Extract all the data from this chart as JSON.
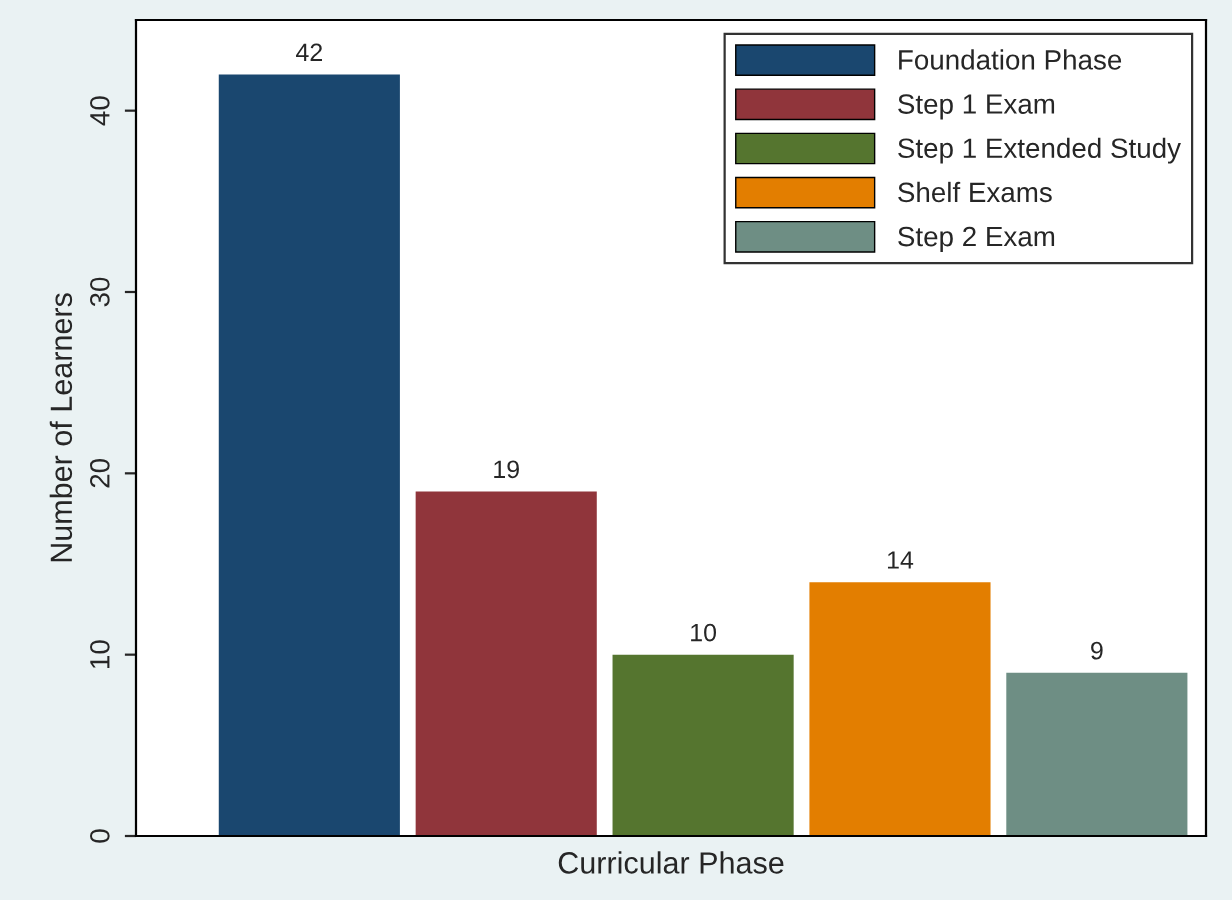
{
  "chart_data": {
    "type": "bar",
    "xlabel": "Curricular Phase",
    "ylabel": "Number of Learners",
    "categories": [
      null
    ],
    "series": [
      {
        "name": "Foundation Phase",
        "color": "#1a476f",
        "values": [
          42
        ]
      },
      {
        "name": "Step 1 Exam",
        "color": "#90353b",
        "values": [
          19
        ]
      },
      {
        "name": "Step 1 Extended Study",
        "color": "#55752f",
        "values": [
          10
        ]
      },
      {
        "name": "Shelf Exams",
        "color": "#e37e00",
        "values": [
          14
        ]
      },
      {
        "name": "Step 2 Exam",
        "color": "#6e8e84",
        "values": [
          9
        ]
      }
    ],
    "ylim": [
      0,
      45
    ],
    "yticks": [
      0,
      10,
      20,
      30,
      40
    ],
    "grid": false,
    "legend": "top right",
    "data_labels": true
  }
}
